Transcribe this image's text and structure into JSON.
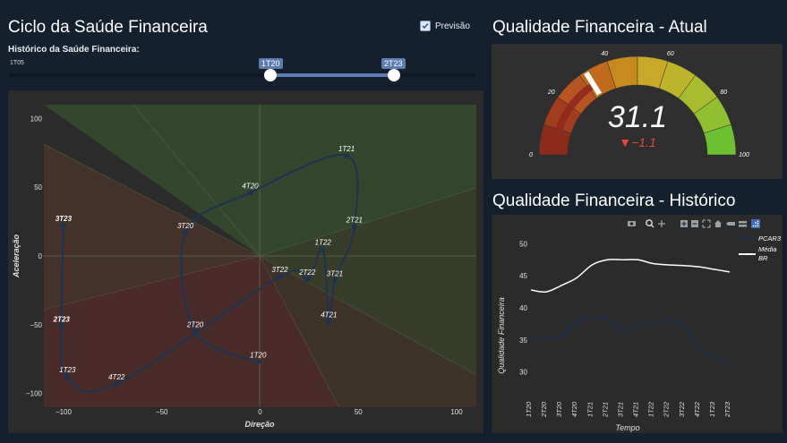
{
  "left": {
    "title": "Ciclo da Saúde Financeira",
    "forecast_label": "Previsão",
    "forecast_checked": true,
    "history_label": "Histórico da Saúde Financeira:",
    "slider": {
      "min_label": "1T05",
      "start_value": "1T20",
      "end_value": "2T23"
    }
  },
  "cycle": {
    "xlabel": "Direção",
    "ylabel": "Aceleração",
    "xticks": [
      "−100",
      "−50",
      "0",
      "50",
      "100"
    ],
    "yticks": [
      "100",
      "50",
      "0",
      "−50",
      "−100"
    ]
  },
  "gauge": {
    "title": "Qualidade Financeira - Atual",
    "value": "31.1",
    "delta": "▼−1.1",
    "ticks": [
      "0",
      "20",
      "40",
      "60",
      "80",
      "100"
    ]
  },
  "history": {
    "title": "Qualidade Financeira - Histórico",
    "xlabel": "Tempo",
    "ylabel": "Qualidade Financeira",
    "legend": [
      "PCAR3",
      "Média BR"
    ],
    "yticks": [
      "50",
      "45",
      "40",
      "35",
      "30"
    ],
    "colors": {
      "pcar3": "#1d2f4a",
      "media": "#ffffff"
    }
  },
  "chart_data": [
    {
      "type": "scatter",
      "xlabel": "Direção",
      "ylabel": "Aceleração",
      "xlim": [
        -110,
        110
      ],
      "ylim": [
        -110,
        110
      ],
      "points": [
        {
          "label": "1T20",
          "x": -1,
          "y": -77
        },
        {
          "label": "2T20",
          "x": -33,
          "y": -55
        },
        {
          "label": "3T20",
          "x": -38,
          "y": 17
        },
        {
          "label": "4T20",
          "x": -5,
          "y": 46
        },
        {
          "label": "1T21",
          "x": 44,
          "y": 73
        },
        {
          "label": "2T21",
          "x": 48,
          "y": 21
        },
        {
          "label": "3T21",
          "x": 38,
          "y": -18
        },
        {
          "label": "4T21",
          "x": 35,
          "y": -48
        },
        {
          "label": "1T22",
          "x": 32,
          "y": 5
        },
        {
          "label": "2T22",
          "x": 24,
          "y": -17
        },
        {
          "label": "3T22",
          "x": 10,
          "y": -15
        },
        {
          "label": "4T22",
          "x": -73,
          "y": -93
        },
        {
          "label": "1T23",
          "x": -98,
          "y": -88
        },
        {
          "label": "2T23",
          "x": -101,
          "y": -51
        },
        {
          "label": "3T23",
          "x": -100,
          "y": 22
        }
      ]
    },
    {
      "type": "line",
      "x": [
        "1T20",
        "2T20",
        "3T20",
        "4T20",
        "1T21",
        "2T21",
        "3T21",
        "4T21",
        "1T22",
        "2T22",
        "3T22",
        "4T22",
        "1T23",
        "2T23"
      ],
      "ylabel": "Qualidade Financeira",
      "xlabel": "Tempo",
      "ylim": [
        28,
        52
      ],
      "series": [
        {
          "name": "PCAR3",
          "values": [
            35.2,
            35.3,
            35.5,
            37.8,
            38.3,
            38.4,
            36.2,
            37.4,
            37.6,
            38.1,
            37.3,
            33.5,
            32.5,
            31.1
          ]
        },
        {
          "name": "Média BR",
          "values": [
            42.8,
            42.5,
            43.5,
            44.7,
            46.7,
            47.5,
            47.5,
            47.5,
            46.9,
            46.7,
            46.6,
            46.4,
            46.0,
            45.6
          ]
        }
      ]
    },
    {
      "type": "gauge",
      "value": 31.1,
      "reference": 32.2,
      "delta": -1.1,
      "range": [
        0,
        100
      ]
    }
  ]
}
